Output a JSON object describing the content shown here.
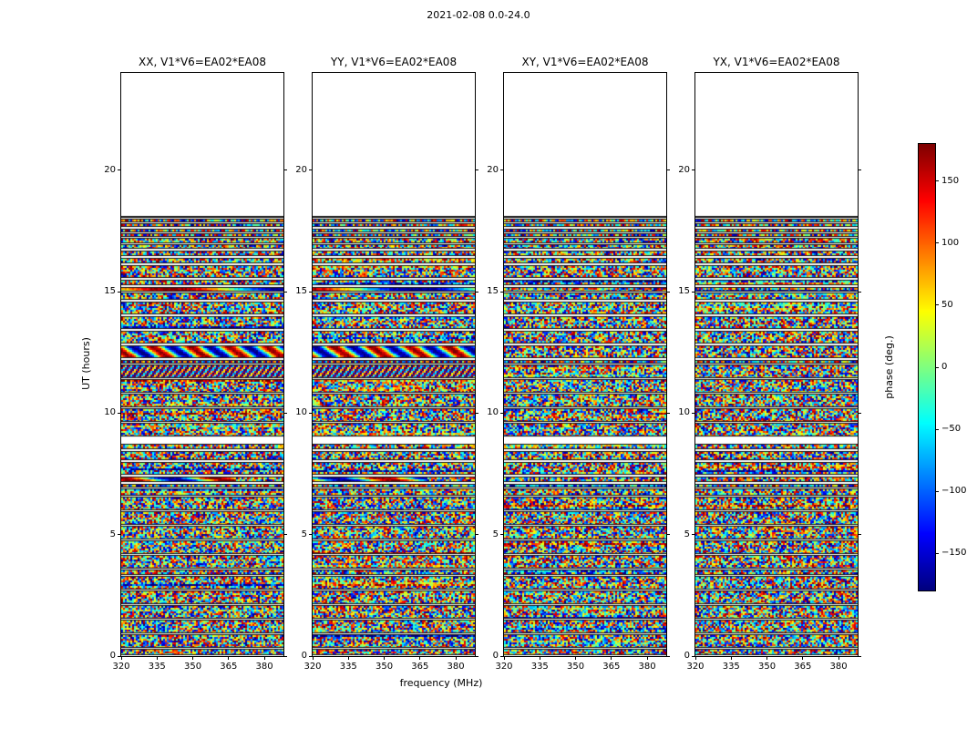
{
  "figure": {
    "title": "2021-02-08 0.0-24.0",
    "xlabel": "frequency (MHz)",
    "ylabel": "UT (hours)",
    "colorbar_label": "phase (deg.)"
  },
  "chart_data": {
    "type": "heatmap",
    "title": "2021-02-08 0.0-24.0",
    "panels": [
      {
        "label": "XX, V1*V6=EA02*EA08",
        "pol": "XX"
      },
      {
        "label": "YY, V1*V6=EA02*EA08",
        "pol": "YY"
      },
      {
        "label": "XY, V1*V6=EA02*EA08",
        "pol": "XY"
      },
      {
        "label": "YX, V1*V6=EA02*EA08",
        "pol": "YX"
      }
    ],
    "x_axis": {
      "label": "frequency (MHz)",
      "ticks": [
        320,
        335,
        350,
        365,
        380
      ],
      "range": [
        320,
        388
      ]
    },
    "y_axis": {
      "label": "UT (hours)",
      "ticks": [
        0,
        5,
        10,
        15,
        20
      ],
      "range": [
        0,
        24
      ]
    },
    "colorbar": {
      "label": "phase (deg.)",
      "ticks": [
        -150,
        -100,
        -50,
        0,
        50,
        100,
        150
      ],
      "range": [
        -180,
        180
      ],
      "colormap": "jet"
    },
    "data_extent_hours": [
      0.0,
      18.1
    ],
    "value_description": "wrapped visibility phase; appears as uniform random noise in [-180,180] deg except during coherent fringe intervals",
    "scans": [
      [
        0.05,
        0.3
      ],
      [
        0.35,
        0.9
      ],
      [
        0.95,
        1.5
      ],
      [
        1.55,
        2.1
      ],
      [
        2.15,
        2.7
      ],
      [
        2.75,
        3.3
      ],
      [
        3.35,
        3.55
      ],
      [
        3.6,
        4.15
      ],
      [
        4.2,
        4.75
      ],
      [
        4.8,
        5.35
      ],
      [
        5.4,
        5.95
      ],
      [
        6.0,
        6.55
      ],
      [
        6.6,
        6.9
      ],
      [
        6.95,
        7.1
      ],
      [
        7.15,
        7.4
      ],
      [
        7.45,
        8.0
      ],
      [
        8.05,
        8.45
      ],
      [
        8.5,
        8.75
      ],
      [
        9.05,
        9.6
      ],
      [
        9.65,
        10.2
      ],
      [
        10.25,
        10.8
      ],
      [
        10.85,
        11.4
      ],
      [
        11.45,
        12.0
      ],
      [
        12.05,
        12.2
      ],
      [
        12.25,
        12.8
      ],
      [
        12.85,
        13.4
      ],
      [
        13.45,
        14.0
      ],
      [
        14.05,
        14.6
      ],
      [
        14.65,
        14.95
      ],
      [
        15.0,
        15.2
      ],
      [
        15.25,
        15.5
      ],
      [
        15.55,
        16.1
      ],
      [
        16.15,
        16.4
      ],
      [
        16.45,
        16.7
      ],
      [
        16.75,
        16.95
      ],
      [
        17.0,
        17.2
      ],
      [
        17.25,
        17.4
      ],
      [
        17.45,
        17.6
      ],
      [
        17.65,
        17.8
      ],
      [
        17.85,
        18.0
      ],
      [
        18.02,
        18.1
      ]
    ],
    "features": [
      {
        "pols": [
          "XX",
          "YY"
        ],
        "t0": 12.25,
        "t1": 12.8,
        "kind": "fringe",
        "period_mhz": 16,
        "drift": 6
      },
      {
        "pols": [
          "XX",
          "YY"
        ],
        "t0": 11.45,
        "t1": 12.2,
        "kind": "fine-fringe",
        "period_mhz": 2.2,
        "drift": 50
      },
      {
        "pols": [
          "XX",
          "YY"
        ],
        "t0": 7.15,
        "t1": 7.4,
        "kind": "fringe",
        "period_mhz": 40,
        "drift": 10,
        "fmax_frac": 0.7
      },
      {
        "pols": [
          "XX",
          "YY"
        ],
        "t0": 15.0,
        "t1": 15.2,
        "kind": "fringe",
        "period_mhz": 100,
        "drift": 3
      }
    ]
  }
}
